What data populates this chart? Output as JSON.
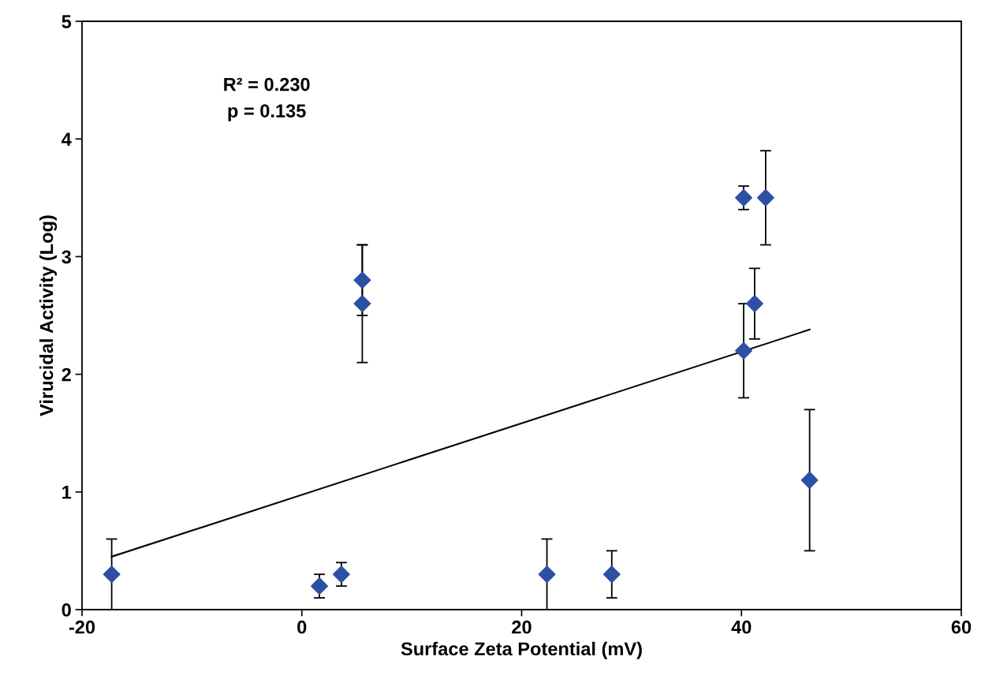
{
  "chart_data": {
    "type": "scatter",
    "xlabel": "Surface Zeta Potential (mV)",
    "ylabel": "Virucidal Activity (Log)",
    "annotations": [
      "R² = 0.230",
      "p = 0.135"
    ],
    "xlim": [
      -20,
      60
    ],
    "xticks": [
      -20,
      0,
      20,
      40,
      60
    ],
    "ylim": [
      0,
      5
    ],
    "yticks": [
      0,
      1,
      2,
      3,
      4,
      5
    ],
    "grid": false,
    "legend": false,
    "marker": "diamond",
    "series": [
      {
        "color": "#2e50a4",
        "x": [
          -17.3,
          1.6,
          3.6,
          5.5,
          5.5,
          22.3,
          28.2,
          40.2,
          42.2,
          41.2,
          40.2,
          46.2
        ],
        "values": [
          0.3,
          0.2,
          0.3,
          2.8,
          2.6,
          0.3,
          0.3,
          3.5,
          3.5,
          2.6,
          2.2,
          1.1
        ],
        "errors": [
          0.3,
          0.1,
          0.1,
          0.3,
          0.5,
          0.3,
          0.2,
          0.1,
          0.4,
          0.3,
          0.4,
          0.6
        ]
      },
      {
        "type": "line",
        "color": "#000000",
        "x": [
          -17.3,
          46.2
        ],
        "values": [
          0.45,
          2.38
        ],
        "marker": "none",
        "line_style": "solid"
      }
    ]
  }
}
